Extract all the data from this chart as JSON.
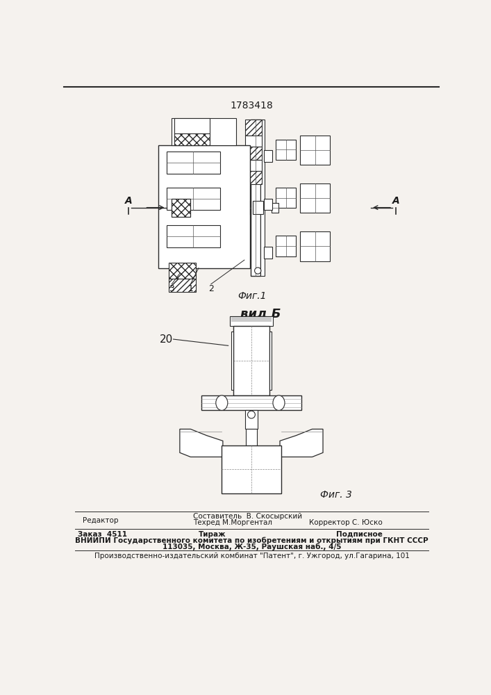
{
  "patent_number": "1783418",
  "fig1_label": "Фиг.1",
  "fig3_label": "Фиг. 3",
  "vid_b_label": "вид Б",
  "label_20": "20",
  "labels_fig1": [
    "3",
    "1",
    "2"
  ],
  "label_A": "A",
  "footer_editor": "Редактор",
  "footer_composer": "Составитель  В. Скосырский",
  "footer_techred": "Техред М.Моргентал",
  "footer_corrector": "Корректор С. Юско",
  "footer_order": "Заказ  4511",
  "footer_tirazh": "Тираж",
  "footer_podpisnoe": "Подписное",
  "footer_vniiipi": "ВНИИПИ Государственного комитета по изобретениям и открытиям при ГКНТ СССР",
  "footer_address": "113035, Москва, Ж-35, Раушская наб., 4/5",
  "footer_publisher": "Производственно-издательский комбинат \"Патент\", г. Ужгород, ул.Гагарина, 101",
  "bg_color": "#f5f2ee",
  "line_color": "#2a2a2a",
  "text_color": "#1a1a1a"
}
